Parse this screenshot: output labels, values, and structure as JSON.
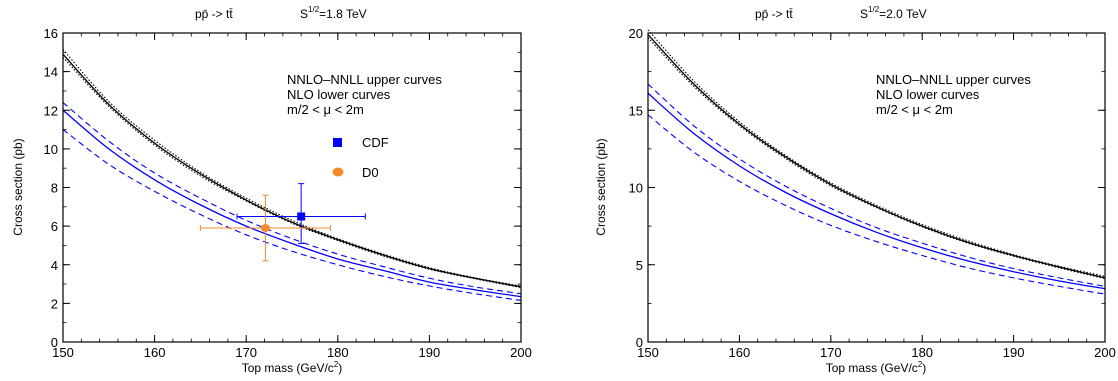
{
  "chart_data": [
    {
      "type": "line",
      "title": "pp̄ -> tt̄",
      "energy_prefix": "S",
      "energy_exp": "1/2",
      "energy_value": "=1.8 TeV",
      "xlabel_main": "Top mass (GeV/c",
      "xlabel_exp": "2",
      "xlabel_end": ")",
      "ylabel": "Cross section (pb)",
      "xlim": [
        150,
        200
      ],
      "ylim": [
        0,
        16
      ],
      "xticks": [
        150,
        160,
        170,
        180,
        190,
        200
      ],
      "yticks": [
        0,
        2,
        4,
        6,
        8,
        10,
        12,
        14,
        16
      ],
      "annotations": [
        "NNLO–NNLL upper curves",
        "NLO lower curves",
        "m/2 < μ < 2m"
      ],
      "x": [
        150,
        155,
        160,
        165,
        170,
        175,
        180,
        185,
        190,
        195,
        200
      ],
      "series": [
        {
          "color": "#000000",
          "style": "solid",
          "values": [
            14.9,
            12.3,
            10.3,
            8.7,
            7.35,
            6.2,
            5.3,
            4.5,
            3.8,
            3.3,
            2.85
          ]
        },
        {
          "color": "#000000",
          "style": "dotted",
          "values": [
            15.15,
            12.45,
            10.45,
            8.8,
            7.45,
            6.3,
            5.35,
            4.55,
            3.85,
            3.32,
            2.9
          ]
        },
        {
          "color": "#000000",
          "style": "dotted",
          "values": [
            14.75,
            12.2,
            10.2,
            8.6,
            7.3,
            6.15,
            5.25,
            4.45,
            3.77,
            3.27,
            2.82
          ]
        },
        {
          "color": "#0000ff",
          "style": "solid",
          "values": [
            12.0,
            10.0,
            8.4,
            7.1,
            6.0,
            5.1,
            4.3,
            3.7,
            3.1,
            2.7,
            2.35
          ]
        },
        {
          "color": "#0000ff",
          "style": "dashed",
          "values": [
            12.4,
            10.4,
            8.75,
            7.45,
            6.3,
            5.35,
            4.55,
            3.9,
            3.3,
            2.85,
            2.5
          ]
        },
        {
          "color": "#0000ff",
          "style": "dashed",
          "values": [
            11.0,
            9.2,
            7.8,
            6.6,
            5.55,
            4.7,
            4.0,
            3.4,
            2.9,
            2.5,
            2.15
          ]
        }
      ],
      "points": [
        {
          "name": "CDF",
          "marker": "square",
          "color": "#0000ff",
          "x": 176,
          "y": 6.5,
          "xerr": [
            169,
            183
          ],
          "yerr": [
            5.1,
            8.2
          ]
        },
        {
          "name": "D0",
          "marker": "circle",
          "color": "#f28c28",
          "x": 172.1,
          "y": 5.9,
          "xerr": [
            165,
            179.2
          ],
          "yerr": [
            4.2,
            7.6
          ]
        }
      ]
    },
    {
      "type": "line",
      "title": "pp̄ -> tt̄",
      "energy_prefix": "S",
      "energy_exp": "1/2",
      "energy_value": "=2.0 TeV",
      "xlabel_main": "Top mass (GeV/c",
      "xlabel_exp": "2",
      "xlabel_end": ")",
      "ylabel": "Cross section (pb)",
      "xlim": [
        150,
        200
      ],
      "ylim": [
        0,
        20
      ],
      "xticks": [
        150,
        160,
        170,
        180,
        190,
        200
      ],
      "yticks": [
        0,
        5,
        10,
        15,
        20
      ],
      "annotations": [
        "NNLO–NNLL upper curves",
        "NLO lower curves",
        "m/2 < μ < 2m"
      ],
      "x": [
        150,
        155,
        160,
        165,
        170,
        175,
        180,
        185,
        190,
        195,
        200
      ],
      "series": [
        {
          "color": "#000000",
          "style": "solid",
          "values": [
            19.9,
            16.7,
            14.1,
            12.0,
            10.2,
            8.75,
            7.5,
            6.45,
            5.6,
            4.85,
            4.15
          ]
        },
        {
          "color": "#000000",
          "style": "dotted",
          "values": [
            20.2,
            16.9,
            14.25,
            12.1,
            10.3,
            8.85,
            7.6,
            6.55,
            5.65,
            4.9,
            4.25
          ]
        },
        {
          "color": "#000000",
          "style": "dotted",
          "values": [
            19.7,
            16.55,
            14.0,
            11.9,
            10.1,
            8.7,
            7.45,
            6.4,
            5.55,
            4.8,
            4.1
          ]
        },
        {
          "color": "#0000ff",
          "style": "solid",
          "values": [
            16.1,
            13.5,
            11.4,
            9.7,
            8.3,
            7.1,
            6.1,
            5.25,
            4.55,
            3.95,
            3.45
          ]
        },
        {
          "color": "#0000ff",
          "style": "dashed",
          "values": [
            16.7,
            14.0,
            11.85,
            10.1,
            8.65,
            7.4,
            6.4,
            5.5,
            4.75,
            4.15,
            3.6
          ]
        },
        {
          "color": "#0000ff",
          "style": "dashed",
          "values": [
            14.7,
            12.3,
            10.4,
            8.85,
            7.55,
            6.5,
            5.6,
            4.8,
            4.15,
            3.6,
            3.1
          ]
        }
      ],
      "points": []
    }
  ]
}
